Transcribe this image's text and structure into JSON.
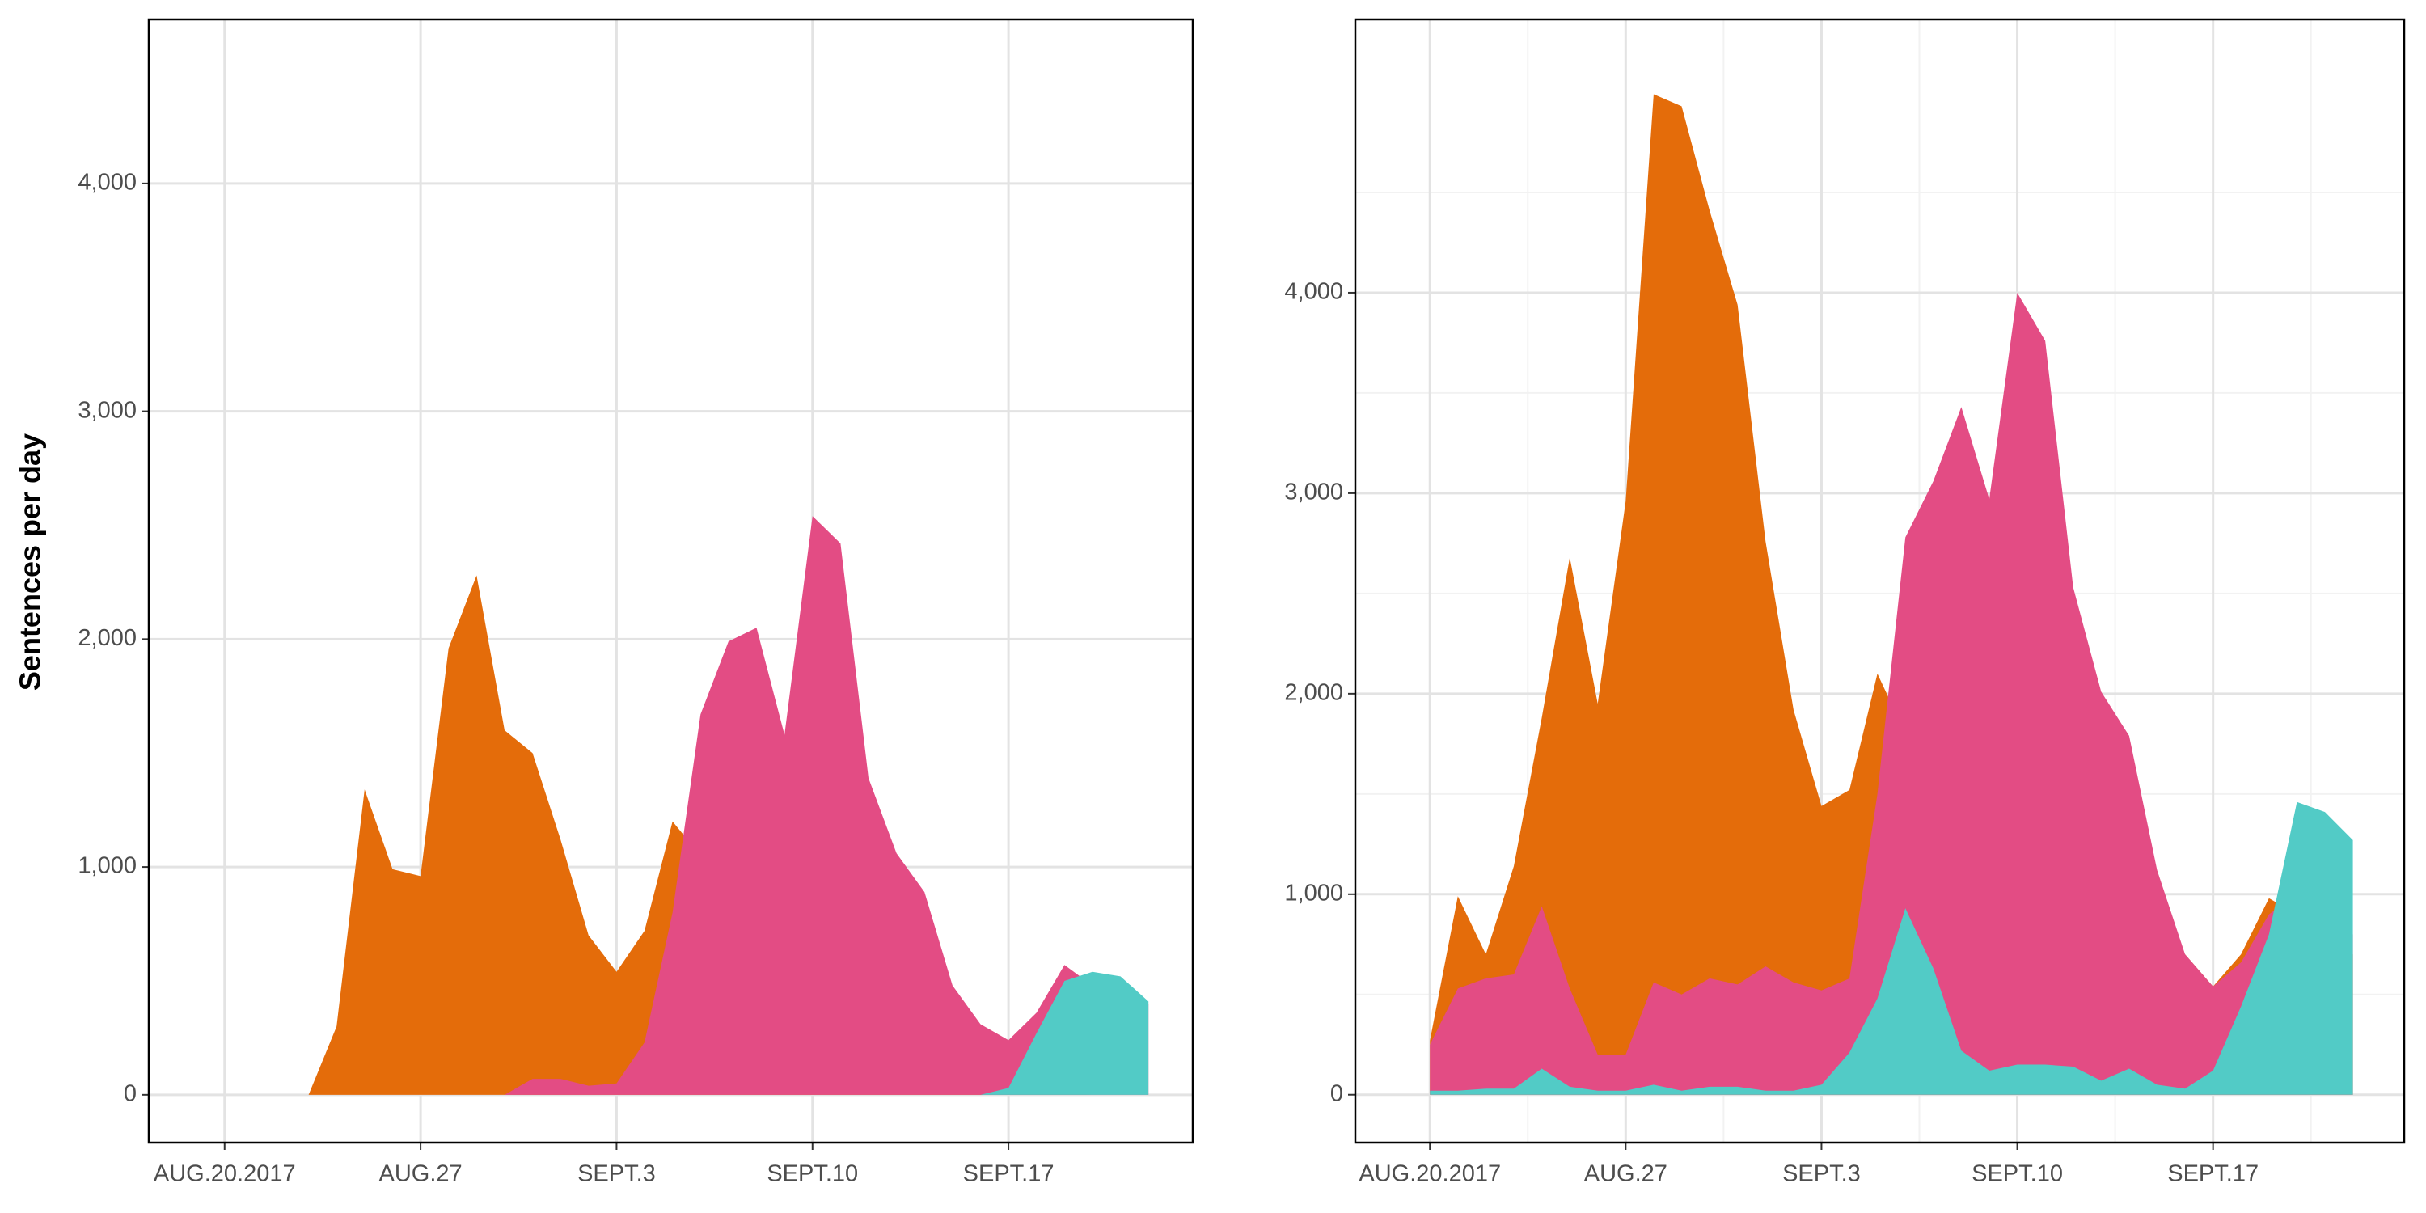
{
  "chart_data": [
    {
      "type": "area",
      "ylabel": "Sentences per day",
      "x": [
        "2017-08-20",
        "2017-08-21",
        "2017-08-22",
        "2017-08-23",
        "2017-08-24",
        "2017-08-25",
        "2017-08-26",
        "2017-08-27",
        "2017-08-28",
        "2017-08-29",
        "2017-08-30",
        "2017-08-31",
        "2017-09-01",
        "2017-09-02",
        "2017-09-03",
        "2017-09-04",
        "2017-09-05",
        "2017-09-06",
        "2017-09-07",
        "2017-09-08",
        "2017-09-09",
        "2017-09-10",
        "2017-09-11",
        "2017-09-12",
        "2017-09-13",
        "2017-09-14",
        "2017-09-15",
        "2017-09-16",
        "2017-09-17",
        "2017-09-18",
        "2017-09-19",
        "2017-09-20",
        "2017-09-21",
        "2017-09-22"
      ],
      "series": [
        {
          "color": "#E46C0A",
          "values": [
            null,
            null,
            0,
            0,
            300,
            1340,
            990,
            960,
            1960,
            2280,
            1600,
            1500,
            1120,
            700,
            540,
            720,
            1200,
            1050,
            800,
            600,
            400,
            300,
            200,
            150,
            100,
            80,
            50,
            30,
            20,
            10,
            5,
            0,
            0,
            0
          ]
        },
        {
          "color": "#E34C84",
          "values": [
            null,
            null,
            0,
            0,
            0,
            0,
            0,
            0,
            0,
            0,
            0,
            70,
            70,
            40,
            50,
            230,
            800,
            1670,
            1990,
            2050,
            1580,
            2540,
            2420,
            1390,
            1060,
            890,
            480,
            310,
            240,
            360,
            570,
            480,
            450,
            400
          ]
        },
        {
          "color": "#52CBC6",
          "values": [
            null,
            null,
            0,
            0,
            0,
            0,
            0,
            0,
            0,
            0,
            0,
            0,
            0,
            0,
            0,
            0,
            0,
            0,
            0,
            0,
            0,
            0,
            0,
            0,
            0,
            0,
            0,
            0,
            30,
            270,
            500,
            540,
            520,
            410
          ]
        }
      ],
      "xlim": [
        "2017-08-17T07:00",
        "2017-09-23T14:00"
      ],
      "xticks": [
        {
          "value": "2017-08-20",
          "label": "AUG.20.2017"
        },
        {
          "value": "2017-08-27",
          "label": "AUG.27"
        },
        {
          "value": "2017-09-03",
          "label": "SEPT.3"
        },
        {
          "value": "2017-09-10",
          "label": "SEPT.10"
        },
        {
          "value": "2017-09-17",
          "label": "SEPT.17"
        }
      ],
      "ylim": [
        -210,
        4720
      ],
      "yticks": [
        0,
        {
          "value": 1000,
          "label": "1,000"
        },
        {
          "value": 2000,
          "label": "2,000"
        },
        {
          "value": 3000,
          "label": "3,000"
        },
        {
          "value": 4000,
          "label": "4,000"
        }
      ],
      "grid": true
    },
    {
      "type": "area",
      "x": [
        "2017-08-20",
        "2017-08-21",
        "2017-08-22",
        "2017-08-23",
        "2017-08-24",
        "2017-08-25",
        "2017-08-26",
        "2017-08-27",
        "2017-08-28",
        "2017-08-29",
        "2017-08-30",
        "2017-08-31",
        "2017-09-01",
        "2017-09-02",
        "2017-09-03",
        "2017-09-04",
        "2017-09-05",
        "2017-09-06",
        "2017-09-07",
        "2017-09-08",
        "2017-09-09",
        "2017-09-10",
        "2017-09-11",
        "2017-09-12",
        "2017-09-13",
        "2017-09-14",
        "2017-09-15",
        "2017-09-16",
        "2017-09-17",
        "2017-09-18",
        "2017-09-19",
        "2017-09-20",
        "2017-09-21",
        "2017-09-22"
      ],
      "series": [
        {
          "color": "#E46C0A",
          "values": [
            270,
            990,
            700,
            1140,
            1880,
            2680,
            1950,
            2960,
            4990,
            4930,
            4410,
            3940,
            2760,
            1920,
            1440,
            1520,
            2100,
            1800,
            1500,
            1300,
            1200,
            1100,
            1000,
            900,
            850,
            800,
            750,
            700,
            540,
            700,
            980,
            900,
            800,
            700
          ]
        },
        {
          "color": "#E34C84",
          "values": [
            250,
            530,
            580,
            600,
            940,
            530,
            200,
            200,
            560,
            500,
            580,
            550,
            640,
            560,
            520,
            580,
            1500,
            2780,
            3060,
            3430,
            2970,
            4000,
            3760,
            2530,
            2010,
            1790,
            1120,
            700,
            540,
            660,
            900,
            1000,
            900,
            800
          ]
        },
        {
          "color": "#52CBC6",
          "values": [
            20,
            20,
            30,
            30,
            130,
            40,
            20,
            20,
            50,
            20,
            40,
            40,
            20,
            20,
            50,
            210,
            480,
            930,
            630,
            220,
            120,
            150,
            150,
            140,
            70,
            130,
            50,
            30,
            120,
            440,
            800,
            1460,
            1410,
            1270
          ]
        }
      ],
      "xlim": [
        "2017-08-17T08:00",
        "2017-09-23T20:00"
      ],
      "xticks": [
        {
          "value": "2017-08-20",
          "label": "AUG.20.2017"
        },
        {
          "value": "2017-08-27",
          "label": "AUG.27"
        },
        {
          "value": "2017-09-03",
          "label": "SEPT.3"
        },
        {
          "value": "2017-09-10",
          "label": "SEPT.10"
        },
        {
          "value": "2017-09-17",
          "label": "SEPT.17"
        }
      ],
      "xminor": [
        "2017-08-23T12:00",
        "2017-08-30T12:00",
        "2017-09-06T12:00",
        "2017-09-13T12:00",
        "2017-09-20T12:00"
      ],
      "ylim": [
        -239,
        5363
      ],
      "yticks": [
        0,
        {
          "value": 1000,
          "label": "1,000"
        },
        {
          "value": 2000,
          "label": "2,000"
        },
        {
          "value": 3000,
          "label": "3,000"
        },
        {
          "value": 4000,
          "label": "4,000"
        }
      ],
      "yminor": [
        500,
        1500,
        2500,
        3500,
        4500
      ],
      "grid": true
    }
  ]
}
